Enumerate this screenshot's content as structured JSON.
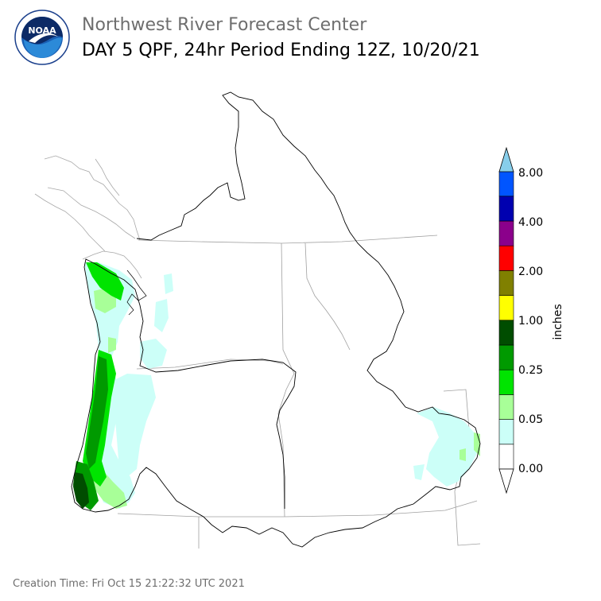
{
  "header": {
    "organization": "Northwest River Forecast Center",
    "product_title": "DAY 5 QPF, 24hr Period Ending 12Z, 10/20/21",
    "logo_text": "NOAA",
    "logo_ring_text": "NATIONAL OCEANIC AND ATMOSPHERIC ADMINISTRATION · U.S. DEPARTMENT OF COMMERCE"
  },
  "legend": {
    "unit_label": "inches",
    "tick_labels": [
      "8.00",
      "4.00",
      "2.00",
      "1.00",
      "0.25",
      "0.05",
      "0.00"
    ],
    "bins": [
      {
        "color": "#ffffff"
      },
      {
        "color": "#ccfff8"
      },
      {
        "color": "#a8ff98"
      },
      {
        "color": "#00e400"
      },
      {
        "color": "#009a00"
      },
      {
        "color": "#004d00"
      },
      {
        "color": "#ffff00"
      },
      {
        "color": "#808000"
      },
      {
        "color": "#ff0000"
      },
      {
        "color": "#8b008b"
      },
      {
        "color": "#0000b0"
      },
      {
        "color": "#0055ff"
      },
      {
        "color": "#87ceeb"
      }
    ]
  },
  "footer": {
    "creation_time": "Creation Time: Fri Oct 15 21:22:32 UTC 2021"
  }
}
